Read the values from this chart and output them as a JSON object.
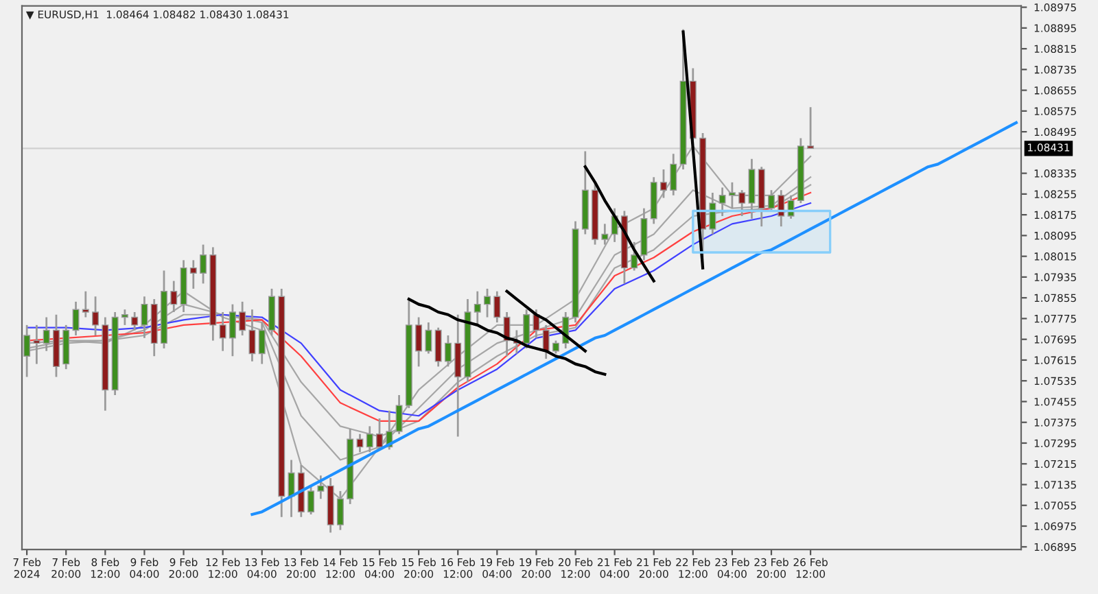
{
  "chart_data": {
    "type": "candlestick",
    "title": "▼ EURUSD,H1  1.08464 1.08482 1.08430 1.08431",
    "categories": [
      "7 Feb 2024",
      null,
      null,
      null,
      "7 Feb 20:00",
      null,
      null,
      null,
      "8 Feb 12:00",
      null,
      null,
      null,
      "9 Feb 04:00",
      null,
      null,
      null,
      "9 Feb 20:00",
      null,
      null,
      null,
      "12 Feb 12:00",
      null,
      null,
      null,
      "13 Feb 04:00",
      null,
      null,
      null,
      "13 Feb 20:00",
      null,
      null,
      null,
      "14 Feb 12:00",
      null,
      null,
      null,
      "15 Feb 04:00",
      null,
      null,
      null,
      "15 Feb 20:00",
      null,
      null,
      null,
      "16 Feb 12:00",
      null,
      null,
      null,
      "19 Feb 04:00",
      null,
      null,
      null,
      "19 Feb 20:00",
      null,
      null,
      null,
      "20 Feb 12:00",
      null,
      null,
      null,
      "21 Feb 04:00",
      null,
      null,
      null,
      "21 Feb 20:00",
      null,
      null,
      null,
      "22 Feb 12:00",
      null,
      null,
      null,
      "23 Feb 04:00",
      null,
      null,
      null,
      "23 Feb 20:00",
      null,
      null,
      null,
      "26 Feb 12:00",
      null,
      null,
      null,
      null,
      null,
      null,
      null,
      null,
      null,
      null,
      null,
      null,
      null,
      null,
      null,
      null,
      null,
      null,
      null,
      null,
      null
    ],
    "ohlc": [
      [
        1.0763,
        1.0775,
        1.0755,
        1.0771
      ],
      [
        1.0769,
        1.0775,
        1.076,
        1.0768
      ],
      [
        1.0768,
        1.0778,
        1.0765,
        1.0773
      ],
      [
        1.0773,
        1.0779,
        1.0755,
        1.0759
      ],
      [
        1.076,
        1.0775,
        1.0758,
        1.0773
      ],
      [
        1.0773,
        1.0784,
        1.0771,
        1.0781
      ],
      [
        1.0781,
        1.0788,
        1.0778,
        1.078
      ],
      [
        1.078,
        1.0786,
        1.0771,
        1.0775
      ],
      [
        1.0775,
        1.0778,
        1.0742,
        1.075
      ],
      [
        1.075,
        1.078,
        1.0748,
        1.0778
      ],
      [
        1.0778,
        1.0781,
        1.0775,
        1.0779
      ],
      [
        1.0778,
        1.078,
        1.0773,
        1.0775
      ],
      [
        1.0775,
        1.0786,
        1.077,
        1.0783
      ],
      [
        1.0783,
        1.0785,
        1.0763,
        1.0768
      ],
      [
        1.0768,
        1.0796,
        1.0766,
        1.0788
      ],
      [
        1.0788,
        1.0792,
        1.078,
        1.0783
      ],
      [
        1.0783,
        1.08,
        1.078,
        1.0797
      ],
      [
        1.0797,
        1.08,
        1.0789,
        1.0795
      ],
      [
        1.0795,
        1.0806,
        1.0791,
        1.0802
      ],
      [
        1.0802,
        1.0805,
        1.0769,
        1.0775
      ],
      [
        1.0775,
        1.078,
        1.0765,
        1.077
      ],
      [
        1.077,
        1.0783,
        1.0763,
        1.078
      ],
      [
        1.078,
        1.0784,
        1.0771,
        1.0773
      ],
      [
        1.0773,
        1.0781,
        1.0761,
        1.0764
      ],
      [
        1.0764,
        1.0776,
        1.076,
        1.0773
      ],
      [
        1.0773,
        1.0789,
        1.0771,
        1.0786
      ],
      [
        1.0786,
        1.0789,
        1.0701,
        1.0709
      ],
      [
        1.0709,
        1.0723,
        1.0701,
        1.0718
      ],
      [
        1.0718,
        1.0721,
        1.0701,
        1.0703
      ],
      [
        1.0703,
        1.0713,
        1.0702,
        1.0711
      ],
      [
        1.0711,
        1.0717,
        1.0708,
        1.0713
      ],
      [
        1.0713,
        1.0716,
        1.0695,
        1.0698
      ],
      [
        1.0698,
        1.0711,
        1.0696,
        1.0708
      ],
      [
        1.0708,
        1.0735,
        1.0706,
        1.0731
      ],
      [
        1.0731,
        1.0733,
        1.0726,
        1.0728
      ],
      [
        1.0728,
        1.0736,
        1.0726,
        1.0733
      ],
      [
        1.0733,
        1.0739,
        1.0727,
        1.0728
      ],
      [
        1.0728,
        1.0742,
        1.0727,
        1.0734
      ],
      [
        1.0734,
        1.0748,
        1.0733,
        1.0744
      ],
      [
        1.0744,
        1.0785,
        1.0743,
        1.0775
      ],
      [
        1.0775,
        1.0778,
        1.0759,
        1.0765
      ],
      [
        1.0765,
        1.0776,
        1.0764,
        1.0773
      ],
      [
        1.0773,
        1.0774,
        1.0759,
        1.0761
      ],
      [
        1.0761,
        1.0771,
        1.0759,
        1.0768
      ],
      [
        1.0768,
        1.0779,
        1.0732,
        1.0755
      ],
      [
        1.0755,
        1.0785,
        1.0753,
        1.078
      ],
      [
        1.078,
        1.0788,
        1.0775,
        1.0783
      ],
      [
        1.0783,
        1.0789,
        1.0778,
        1.0786
      ],
      [
        1.0786,
        1.0788,
        1.0776,
        1.0778
      ],
      [
        1.0778,
        1.078,
        1.0763,
        1.0769
      ],
      [
        1.0769,
        1.0773,
        1.0764,
        1.0768
      ],
      [
        1.0768,
        1.0781,
        1.0766,
        1.0779
      ],
      [
        1.0779,
        1.0781,
        1.077,
        1.0773
      ],
      [
        1.0773,
        1.0775,
        1.0762,
        1.0765
      ],
      [
        1.0765,
        1.0769,
        1.0764,
        1.0768
      ],
      [
        1.0768,
        1.078,
        1.0766,
        1.0778
      ],
      [
        1.0778,
        1.0815,
        1.0776,
        1.0812
      ],
      [
        1.0812,
        1.0842,
        1.081,
        1.0827
      ],
      [
        1.0827,
        1.083,
        1.0806,
        1.0808
      ],
      [
        1.0808,
        1.0814,
        1.0806,
        1.081
      ],
      [
        1.081,
        1.082,
        1.0807,
        1.0817
      ],
      [
        1.0817,
        1.0819,
        1.0791,
        1.0797
      ],
      [
        1.0797,
        1.0807,
        1.0796,
        1.0802
      ],
      [
        1.0802,
        1.082,
        1.08,
        1.0816
      ],
      [
        1.0816,
        1.0832,
        1.0814,
        1.083
      ],
      [
        1.083,
        1.0835,
        1.0824,
        1.0827
      ],
      [
        1.0827,
        1.0841,
        1.0825,
        1.0837
      ],
      [
        1.0837,
        1.0889,
        1.0835,
        1.0869
      ],
      [
        1.0869,
        1.0874,
        1.0844,
        1.0847
      ],
      [
        1.0847,
        1.0849,
        1.0798,
        1.0812
      ],
      [
        1.0812,
        1.0826,
        1.081,
        1.0822
      ],
      [
        1.0822,
        1.0828,
        1.0817,
        1.0825
      ],
      [
        1.0825,
        1.083,
        1.082,
        1.0826
      ],
      [
        1.0826,
        1.0827,
        1.0817,
        1.0822
      ],
      [
        1.0822,
        1.0839,
        1.0816,
        1.0835
      ],
      [
        1.0835,
        1.0836,
        1.0813,
        1.082
      ],
      [
        1.082,
        1.0827,
        1.0819,
        1.0825
      ],
      [
        1.0825,
        1.0827,
        1.0813,
        1.0817
      ],
      [
        1.0817,
        1.0825,
        1.0816,
        1.0823
      ],
      [
        1.0823,
        1.0847,
        1.0822,
        1.0844
      ],
      [
        1.0844,
        1.0859,
        1.0843,
        1.08431
      ],
      null,
      null,
      null,
      null,
      null,
      null,
      null,
      null,
      null,
      null,
      null,
      null,
      null,
      null,
      null,
      null,
      null,
      null,
      null,
      null,
      null
    ],
    "colors": [
      "#3f8f1f",
      "#8e1b1b",
      "#3f8f1f",
      "#8e1b1b",
      "#3f8f1f",
      "#3f8f1f",
      "#8e1b1b",
      "#8e1b1b",
      "#8e1b1b",
      "#3f8f1f",
      "#3f8f1f",
      "#8e1b1b",
      "#3f8f1f",
      "#8e1b1b",
      "#3f8f1f",
      "#8e1b1b",
      "#3f8f1f",
      "#8e1b1b",
      "#3f8f1f",
      "#8e1b1b",
      "#8e1b1b",
      "#3f8f1f",
      "#8e1b1b",
      "#8e1b1b",
      "#3f8f1f",
      "#3f8f1f",
      "#8e1b1b",
      "#3f8f1f",
      "#8e1b1b",
      "#3f8f1f",
      "#3f8f1f",
      "#8e1b1b",
      "#3f8f1f",
      "#3f8f1f",
      "#8e1b1b",
      "#3f8f1f",
      "#8e1b1b",
      "#3f8f1f",
      "#3f8f1f",
      "#3f8f1f",
      "#8e1b1b",
      "#3f8f1f",
      "#8e1b1b",
      "#3f8f1f",
      "#8e1b1b",
      "#3f8f1f",
      "#3f8f1f",
      "#3f8f1f",
      "#8e1b1b",
      "#8e1b1b",
      "#8e1b1b",
      "#3f8f1f",
      "#8e1b1b",
      "#8e1b1b",
      "#3f8f1f",
      "#3f8f1f",
      "#3f8f1f",
      "#3f8f1f",
      "#8e1b1b",
      "#3f8f1f",
      "#3f8f1f",
      "#8e1b1b",
      "#3f8f1f",
      "#3f8f1f",
      "#3f8f1f",
      "#8e1b1b",
      "#3f8f1f",
      "#3f8f1f",
      "#8e1b1b",
      "#8e1b1b",
      "#3f8f1f",
      "#3f8f1f",
      "#3f8f1f",
      "#8e1b1b",
      "#3f8f1f",
      "#8e1b1b",
      "#3f8f1f",
      "#8e1b1b",
      "#3f8f1f",
      "#3f8f1f",
      "#8e1b1b",
      null,
      null,
      null,
      null,
      null,
      null,
      null,
      null,
      null,
      null,
      null,
      null,
      null,
      null,
      null,
      null,
      null,
      null,
      null,
      null,
      null
    ],
    "series": [
      {
        "type": "line",
        "color": "#a6a6a6",
        "x": [
          "7 Feb 2024",
          "7 Feb 20:00",
          "8 Feb 12:00",
          "9 Feb 04:00",
          "9 Feb 20:00",
          "12 Feb 12:00",
          "13 Feb 04:00",
          "13 Feb 20:00",
          "14 Feb 12:00",
          "15 Feb 04:00",
          "15 Feb 20:00",
          "16 Feb 12:00",
          "19 Feb 04:00",
          "19 Feb 20:00",
          "20 Feb 12:00",
          "21 Feb 04:00",
          "21 Feb 20:00",
          "22 Feb 12:00",
          "23 Feb 04:00",
          "23 Feb 20:00",
          "26 Feb 12:00"
        ],
        "values": [
          1.0768,
          1.0769,
          1.0768,
          1.0775,
          1.0788,
          1.0778,
          1.0773,
          1.0721,
          1.0708,
          1.0728,
          1.075,
          1.0763,
          1.0775,
          1.0775,
          1.0785,
          1.0812,
          1.082,
          1.0844,
          1.0825,
          1.0825,
          1.084
        ]
      },
      {
        "type": "line",
        "color": "#a6a6a6",
        "x": [
          "7 Feb 2024",
          "7 Feb 20:00",
          "8 Feb 12:00",
          "9 Feb 04:00",
          "9 Feb 20:00",
          "12 Feb 12:00",
          "13 Feb 04:00",
          "13 Feb 20:00",
          "14 Feb 12:00",
          "15 Feb 04:00",
          "15 Feb 20:00",
          "16 Feb 12:00",
          "19 Feb 04:00",
          "19 Feb 20:00",
          "20 Feb 12:00",
          "21 Feb 04:00",
          "21 Feb 20:00",
          "22 Feb 12:00",
          "23 Feb 04:00",
          "23 Feb 20:00",
          "26 Feb 12:00"
        ],
        "values": [
          1.0766,
          1.0769,
          1.0769,
          1.0773,
          1.0783,
          1.0779,
          1.0776,
          1.074,
          1.0723,
          1.0728,
          1.0743,
          1.0758,
          1.0768,
          1.0773,
          1.0778,
          1.0802,
          1.081,
          1.0827,
          1.082,
          1.0821,
          1.0832
        ]
      },
      {
        "type": "line",
        "color": "#a6a6a6",
        "x": [
          "7 Feb 2024",
          "7 Feb 20:00",
          "8 Feb 12:00",
          "9 Feb 04:00",
          "9 Feb 20:00",
          "12 Feb 12:00",
          "13 Feb 04:00",
          "13 Feb 20:00",
          "14 Feb 12:00",
          "15 Feb 04:00",
          "15 Feb 20:00",
          "16 Feb 12:00",
          "19 Feb 04:00",
          "19 Feb 20:00",
          "20 Feb 12:00",
          "21 Feb 04:00",
          "21 Feb 20:00",
          "22 Feb 12:00",
          "23 Feb 04:00",
          "23 Feb 20:00",
          "26 Feb 12:00"
        ],
        "values": [
          1.0765,
          1.0768,
          1.0769,
          1.0771,
          1.0779,
          1.0779,
          1.0777,
          1.0753,
          1.0736,
          1.0732,
          1.0738,
          1.0753,
          1.0763,
          1.0771,
          1.0774,
          1.0797,
          1.0804,
          1.0817,
          1.0819,
          1.082,
          1.0829
        ]
      },
      {
        "type": "line",
        "color": "#ff4040",
        "x": [
          "7 Feb 2024",
          "7 Feb 20:00",
          "8 Feb 12:00",
          "9 Feb 04:00",
          "9 Feb 20:00",
          "12 Feb 12:00",
          "13 Feb 04:00",
          "13 Feb 20:00",
          "14 Feb 12:00",
          "15 Feb 04:00",
          "15 Feb 20:00",
          "16 Feb 12:00",
          "19 Feb 04:00",
          "19 Feb 20:00",
          "20 Feb 12:00",
          "21 Feb 04:00",
          "21 Feb 20:00",
          "22 Feb 12:00",
          "23 Feb 04:00",
          "23 Feb 20:00",
          "26 Feb 12:00"
        ],
        "values": [
          1.0769,
          1.077,
          1.0771,
          1.0772,
          1.0775,
          1.0776,
          1.0777,
          1.0763,
          1.0745,
          1.0738,
          1.0738,
          1.0751,
          1.076,
          1.0773,
          1.0775,
          1.0794,
          1.0801,
          1.0811,
          1.0817,
          1.082,
          1.0826
        ]
      },
      {
        "type": "line",
        "color": "#4040ff",
        "x": [
          "7 Feb 2024",
          "7 Feb 20:00",
          "8 Feb 12:00",
          "9 Feb 04:00",
          "9 Feb 20:00",
          "12 Feb 12:00",
          "13 Feb 04:00",
          "13 Feb 20:00",
          "14 Feb 12:00",
          "15 Feb 04:00",
          "15 Feb 20:00",
          "16 Feb 12:00",
          "19 Feb 04:00",
          "19 Feb 20:00",
          "20 Feb 12:00",
          "21 Feb 04:00",
          "21 Feb 20:00",
          "22 Feb 12:00",
          "23 Feb 04:00",
          "23 Feb 20:00",
          "26 Feb 12:00"
        ],
        "values": [
          1.0774,
          1.0774,
          1.0773,
          1.0774,
          1.0777,
          1.0779,
          1.0778,
          1.0768,
          1.075,
          1.0742,
          1.074,
          1.075,
          1.0758,
          1.077,
          1.0773,
          1.0789,
          1.0796,
          1.0806,
          1.0814,
          1.0817,
          1.0822
        ]
      },
      {
        "type": "line",
        "color": "#1e90ff",
        "values": [
          null,
          null,
          null,
          null,
          null,
          null,
          null,
          null,
          null,
          null,
          null,
          null,
          null,
          null,
          null,
          null,
          null,
          null,
          null,
          null,
          null,
          null,
          null,
          1.0702,
          1.0703,
          1.0705,
          1.0707,
          1.0709,
          1.0711,
          1.0713,
          1.0715,
          1.0717,
          1.0719,
          1.0721,
          1.0723,
          1.0725,
          1.0727,
          1.0729,
          1.0731,
          1.0733,
          1.0735,
          1.0736,
          1.0738,
          1.074,
          1.0742,
          1.0744,
          1.0746,
          1.0748,
          1.075,
          1.0752,
          1.0754,
          1.0756,
          1.0758,
          1.076,
          1.0762,
          1.0764,
          1.0766,
          1.0768,
          1.077,
          1.0771,
          1.0773,
          1.0775,
          1.0777,
          1.0779,
          1.0781,
          1.0783,
          1.0785,
          1.0787,
          1.0789,
          1.0791,
          1.0793,
          1.0795,
          1.0797,
          1.0799,
          1.0801,
          1.0803,
          1.0804,
          1.0806,
          1.0808,
          1.081,
          1.0812,
          1.0814,
          1.0816,
          1.0818,
          1.082,
          1.0822,
          1.0824,
          1.0826,
          1.0828,
          1.083,
          1.0832,
          1.0834,
          1.0836,
          1.0837,
          1.0839,
          1.0841,
          1.0843,
          1.0845,
          1.0847,
          1.0849,
          1.0851,
          1.0853
        ]
      },
      {
        "type": "line",
        "color": "#000000",
        "values": [
          null,
          null,
          null,
          null,
          null,
          null,
          null,
          null,
          null,
          null,
          null,
          null,
          null,
          null,
          null,
          null,
          null,
          null,
          null,
          null,
          null,
          null,
          null,
          null,
          null,
          null,
          null,
          null,
          null,
          null,
          null,
          null,
          null,
          null,
          null,
          null,
          null,
          null,
          null,
          1.0785,
          1.0783,
          1.0782,
          1.078,
          1.0779,
          1.0777,
          1.0776,
          1.0775,
          1.0773,
          1.0772,
          1.077,
          1.0769,
          1.0767,
          1.0766,
          1.0765,
          1.0763,
          1.0762,
          1.076,
          1.0759,
          1.0757,
          1.0756,
          null,
          null,
          null,
          null,
          null,
          null,
          null,
          null,
          null,
          null,
          null,
          null,
          null,
          null,
          null,
          null,
          null,
          null,
          null,
          null,
          null,
          null,
          null,
          null,
          null,
          null,
          null,
          null,
          null,
          null,
          null,
          null,
          null,
          null,
          null,
          null,
          null,
          null,
          null,
          null,
          null,
          null
        ]
      },
      {
        "type": "line",
        "color": "#000000",
        "values": [
          null,
          null,
          null,
          null,
          null,
          null,
          null,
          null,
          null,
          null,
          null,
          null,
          null,
          null,
          null,
          null,
          null,
          null,
          null,
          null,
          null,
          null,
          null,
          null,
          null,
          null,
          null,
          null,
          null,
          null,
          null,
          null,
          null,
          null,
          null,
          null,
          null,
          null,
          null,
          null,
          null,
          null,
          null,
          null,
          null,
          null,
          null,
          null,
          null,
          1.0788,
          1.0785,
          1.0782,
          1.0779,
          1.0777,
          1.0774,
          1.0771,
          1.0768,
          1.0765,
          null,
          null,
          null,
          null,
          null,
          null,
          null,
          null,
          null,
          null,
          null,
          null,
          null,
          null,
          null,
          null,
          null,
          null,
          null,
          null,
          null,
          null,
          null,
          null,
          null,
          null,
          null,
          null,
          null,
          null,
          null,
          null,
          null,
          null,
          null,
          null,
          null,
          null,
          null,
          null,
          null,
          null,
          null,
          null
        ]
      },
      {
        "type": "line",
        "color": "#000000",
        "values": [
          null,
          null,
          null,
          null,
          null,
          null,
          null,
          null,
          null,
          null,
          null,
          null,
          null,
          null,
          null,
          null,
          null,
          null,
          null,
          null,
          null,
          null,
          null,
          null,
          null,
          null,
          null,
          null,
          null,
          null,
          null,
          null,
          null,
          null,
          null,
          null,
          null,
          null,
          null,
          null,
          null,
          null,
          null,
          null,
          null,
          null,
          null,
          null,
          null,
          null,
          null,
          null,
          null,
          null,
          null,
          null,
          null,
          1.0836,
          1.083,
          1.0823,
          1.0817,
          1.0811,
          1.0804,
          1.0798,
          1.0792,
          null,
          null,
          null,
          null,
          null,
          null,
          null,
          null,
          null,
          null,
          null,
          null,
          null,
          null,
          null,
          null,
          null,
          null,
          null,
          null,
          null,
          null,
          null,
          null,
          null,
          null,
          null,
          null,
          null,
          null,
          null,
          null,
          null,
          null,
          null,
          null,
          null
        ]
      },
      {
        "type": "line",
        "color": "#000000",
        "values": [
          null,
          null,
          null,
          null,
          null,
          null,
          null,
          null,
          null,
          null,
          null,
          null,
          null,
          null,
          null,
          null,
          null,
          null,
          null,
          null,
          null,
          null,
          null,
          null,
          null,
          null,
          null,
          null,
          null,
          null,
          null,
          null,
          null,
          null,
          null,
          null,
          null,
          null,
          null,
          null,
          null,
          null,
          null,
          null,
          null,
          null,
          null,
          null,
          null,
          null,
          null,
          null,
          null,
          null,
          null,
          null,
          null,
          null,
          null,
          null,
          null,
          null,
          null,
          null,
          null,
          null,
          null,
          1.0888,
          1.0843,
          1.0797,
          null,
          null,
          null,
          null,
          null,
          null,
          null,
          null,
          null,
          null,
          null,
          null,
          null,
          null,
          null,
          null,
          null,
          null,
          null,
          null,
          null,
          null,
          null,
          null,
          null,
          null,
          null,
          null,
          null,
          null,
          null,
          null
        ]
      },
      {
        "type": "line",
        "color": "#87cefa",
        "values": [
          null,
          null,
          null,
          null,
          null,
          null,
          null,
          null,
          null,
          null,
          null,
          null,
          null,
          null,
          null,
          null,
          null,
          null,
          null,
          null,
          null,
          null,
          null,
          null,
          null,
          null,
          null,
          null,
          null,
          null,
          null,
          null,
          null,
          null,
          null,
          null,
          null,
          null,
          null,
          null,
          null,
          null,
          null,
          null,
          null,
          null,
          null,
          null,
          null,
          null,
          null,
          null,
          null,
          null,
          null,
          null,
          null,
          null,
          null,
          null,
          null,
          null,
          null,
          null,
          null,
          null,
          null,
          null,
          null,
          null,
          null,
          null,
          null,
          null,
          null,
          null,
          null,
          null,
          null,
          null,
          null,
          null,
          null,
          null,
          null,
          null,
          null,
          null,
          null,
          null,
          null,
          null,
          null,
          null,
          null,
          null,
          null,
          null,
          null,
          null,
          null,
          null
        ],
        "lower": [
          null,
          null,
          null,
          null,
          null,
          null,
          null,
          null,
          null,
          null,
          null,
          null,
          null,
          null,
          null,
          null,
          null,
          null,
          null,
          null,
          null,
          null,
          null,
          null,
          null,
          null,
          null,
          null,
          null,
          null,
          null,
          null,
          null,
          null,
          null,
          null,
          null,
          null,
          null,
          null,
          null,
          null,
          null,
          null,
          null,
          null,
          null,
          null,
          null,
          null,
          null,
          null,
          null,
          null,
          null,
          null,
          null,
          null,
          null,
          null,
          null,
          null,
          null,
          null,
          null,
          null,
          null,
          null,
          1.0803,
          1.0803,
          1.0803,
          1.0803,
          1.0803,
          1.0803,
          1.0803,
          1.0803,
          1.0803,
          1.0803,
          1.0803,
          1.0803,
          1.0803,
          1.0803,
          1.0803,
          null,
          null,
          null,
          null,
          null,
          null,
          null,
          null,
          null,
          null,
          null,
          null,
          null,
          null,
          null,
          null,
          null,
          null,
          null
        ],
        "upper": [
          null,
          null,
          null,
          null,
          null,
          null,
          null,
          null,
          null,
          null,
          null,
          null,
          null,
          null,
          null,
          null,
          null,
          null,
          null,
          null,
          null,
          null,
          null,
          null,
          null,
          null,
          null,
          null,
          null,
          null,
          null,
          null,
          null,
          null,
          null,
          null,
          null,
          null,
          null,
          null,
          null,
          null,
          null,
          null,
          null,
          null,
          null,
          null,
          null,
          null,
          null,
          null,
          null,
          null,
          null,
          null,
          null,
          null,
          null,
          null,
          null,
          null,
          null,
          null,
          null,
          null,
          null,
          null,
          1.0819,
          1.0819,
          1.0819,
          1.0819,
          1.0819,
          1.0819,
          1.0819,
          1.0819,
          1.0819,
          1.0819,
          1.0819,
          1.0819,
          1.0819,
          1.0819,
          1.0819,
          null,
          null,
          null,
          null,
          null,
          null,
          null,
          null,
          null,
          null,
          null,
          null,
          null,
          null,
          null,
          null,
          null,
          null,
          null
        ]
      }
    ],
    "ref_lines": [
      {
        "axis": "y",
        "value": 1.08431,
        "label": "1.08431",
        "color": "#d0d0d0"
      }
    ],
    "ylim": [
      1.06885,
      1.0898
    ],
    "yticks": [
      1.06895,
      1.06975,
      1.07055,
      1.07135,
      1.07215,
      1.07295,
      1.07375,
      1.07455,
      1.07535,
      1.07615,
      1.07695,
      1.07775,
      1.07855,
      1.07935,
      1.08015,
      1.08095,
      1.08175,
      1.08255,
      1.08335,
      1.08495,
      1.08575,
      1.08655,
      1.08735,
      1.08815,
      1.08895,
      1.08975
    ]
  }
}
